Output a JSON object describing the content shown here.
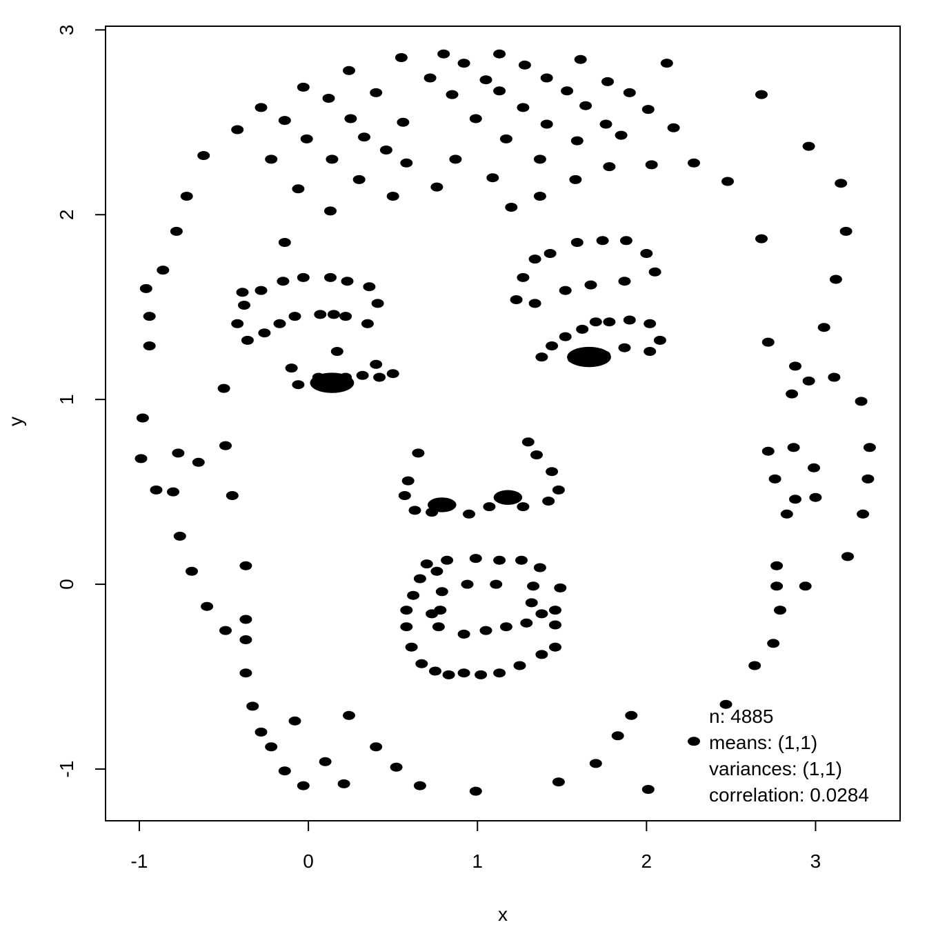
{
  "chart_data": {
    "type": "scatter",
    "xlabel": "x",
    "ylabel": "y",
    "xlim": [
      -1.2,
      3.5
    ],
    "ylim": [
      -1.28,
      3.02
    ],
    "xticks": [
      -1,
      0,
      1,
      2,
      3
    ],
    "yticks": [
      -1,
      0,
      1,
      2,
      3
    ],
    "grid": false,
    "point_color": "#000000",
    "annotations": {
      "n": "n: 4885",
      "means": "means: (1,1)",
      "variances": "variances: (1,1)",
      "correlation": "correlation: 0.0284"
    },
    "points": [
      [
        0.55,
        2.85
      ],
      [
        0.8,
        2.87
      ],
      [
        1.13,
        2.87
      ],
      [
        2.12,
        2.82
      ],
      [
        1.61,
        2.84
      ],
      [
        0.92,
        2.82
      ],
      [
        1.28,
        2.81
      ],
      [
        0.24,
        2.78
      ],
      [
        0.72,
        2.74
      ],
      [
        1.41,
        2.74
      ],
      [
        1.05,
        2.73
      ],
      [
        1.77,
        2.72
      ],
      [
        -0.03,
        2.69
      ],
      [
        0.4,
        2.66
      ],
      [
        1.13,
        2.67
      ],
      [
        1.53,
        2.67
      ],
      [
        0.85,
        2.65
      ],
      [
        1.9,
        2.66
      ],
      [
        2.68,
        2.65
      ],
      [
        0.12,
        2.63
      ],
      [
        1.27,
        2.58
      ],
      [
        1.64,
        2.59
      ],
      [
        -0.28,
        2.58
      ],
      [
        2.01,
        2.57
      ],
      [
        0.25,
        2.52
      ],
      [
        0.99,
        2.52
      ],
      [
        -0.14,
        2.51
      ],
      [
        0.56,
        2.5
      ],
      [
        1.41,
        2.49
      ],
      [
        1.76,
        2.49
      ],
      [
        -0.42,
        2.46
      ],
      [
        2.16,
        2.47
      ],
      [
        1.85,
        2.43
      ],
      [
        0.33,
        2.42
      ],
      [
        -0.01,
        2.41
      ],
      [
        1.17,
        2.41
      ],
      [
        1.59,
        2.4
      ],
      [
        2.96,
        2.37
      ],
      [
        0.46,
        2.35
      ],
      [
        -0.62,
        2.32
      ],
      [
        0.14,
        2.3
      ],
      [
        0.87,
        2.3
      ],
      [
        1.37,
        2.3
      ],
      [
        -0.22,
        2.3
      ],
      [
        0.58,
        2.28
      ],
      [
        2.28,
        2.28
      ],
      [
        1.78,
        2.26
      ],
      [
        2.03,
        2.27
      ],
      [
        2.48,
        2.18
      ],
      [
        3.15,
        2.17
      ],
      [
        0.3,
        2.19
      ],
      [
        1.58,
        2.19
      ],
      [
        1.09,
        2.2
      ],
      [
        0.76,
        2.15
      ],
      [
        -0.06,
        2.14
      ],
      [
        -0.72,
        2.1
      ],
      [
        0.5,
        2.1
      ],
      [
        1.37,
        2.1
      ],
      [
        1.2,
        2.04
      ],
      [
        0.13,
        2.02
      ],
      [
        -0.78,
        1.91
      ],
      [
        3.18,
        1.91
      ],
      [
        -0.14,
        1.85
      ],
      [
        2.68,
        1.87
      ],
      [
        1.59,
        1.85
      ],
      [
        1.74,
        1.86
      ],
      [
        1.88,
        1.86
      ],
      [
        1.43,
        1.79
      ],
      [
        2.0,
        1.79
      ],
      [
        1.34,
        1.76
      ],
      [
        -0.86,
        1.7
      ],
      [
        2.05,
        1.69
      ],
      [
        -0.03,
        1.66
      ],
      [
        0.13,
        1.66
      ],
      [
        1.27,
        1.66
      ],
      [
        0.23,
        1.64
      ],
      [
        -0.15,
        1.64
      ],
      [
        1.87,
        1.64
      ],
      [
        3.12,
        1.65
      ],
      [
        1.67,
        1.62
      ],
      [
        0.36,
        1.61
      ],
      [
        -0.96,
        1.6
      ],
      [
        -0.39,
        1.58
      ],
      [
        -0.28,
        1.59
      ],
      [
        1.52,
        1.59
      ],
      [
        1.23,
        1.54
      ],
      [
        0.41,
        1.52
      ],
      [
        1.34,
        1.52
      ],
      [
        -0.38,
        1.51
      ],
      [
        0.07,
        1.46
      ],
      [
        0.15,
        1.46
      ],
      [
        -0.08,
        1.45
      ],
      [
        0.22,
        1.45
      ],
      [
        -0.94,
        1.45
      ],
      [
        1.9,
        1.43
      ],
      [
        1.7,
        1.42
      ],
      [
        1.78,
        1.42
      ],
      [
        0.35,
        1.41
      ],
      [
        2.02,
        1.41
      ],
      [
        -0.42,
        1.41
      ],
      [
        -0.17,
        1.41
      ],
      [
        3.05,
        1.39
      ],
      [
        1.62,
        1.38
      ],
      [
        -0.26,
        1.36
      ],
      [
        1.52,
        1.34
      ],
      [
        2.08,
        1.32
      ],
      [
        -0.36,
        1.32
      ],
      [
        2.72,
        1.31
      ],
      [
        1.44,
        1.29
      ],
      [
        1.87,
        1.28
      ],
      [
        -0.94,
        1.29
      ],
      [
        0.17,
        1.26
      ],
      [
        2.02,
        1.26
      ],
      [
        1.38,
        1.23
      ],
      [
        1.57,
        1.22
      ],
      [
        1.62,
        1.22
      ],
      [
        1.7,
        1.23
      ],
      [
        1.75,
        1.24
      ],
      [
        0.4,
        1.19
      ],
      [
        2.88,
        1.18
      ],
      [
        -0.1,
        1.17
      ],
      [
        0.5,
        1.14
      ],
      [
        0.06,
        1.12
      ],
      [
        0.14,
        1.12
      ],
      [
        0.22,
        1.12
      ],
      [
        0.32,
        1.13
      ],
      [
        0.42,
        1.12
      ],
      [
        3.11,
        1.12
      ],
      [
        2.96,
        1.1
      ],
      [
        0.06,
        1.09
      ],
      [
        0.14,
        1.08
      ],
      [
        0.2,
        1.09
      ],
      [
        -0.06,
        1.08
      ],
      [
        -0.5,
        1.06
      ],
      [
        2.86,
        1.03
      ],
      [
        3.27,
        0.99
      ],
      [
        -0.98,
        0.9
      ],
      [
        1.3,
        0.77
      ],
      [
        -0.49,
        0.75
      ],
      [
        2.87,
        0.74
      ],
      [
        3.32,
        0.74
      ],
      [
        2.72,
        0.72
      ],
      [
        -0.77,
        0.71
      ],
      [
        0.65,
        0.71
      ],
      [
        1.35,
        0.7
      ],
      [
        -0.99,
        0.68
      ],
      [
        -0.65,
        0.66
      ],
      [
        2.99,
        0.63
      ],
      [
        1.44,
        0.61
      ],
      [
        0.59,
        0.56
      ],
      [
        2.76,
        0.57
      ],
      [
        3.31,
        0.57
      ],
      [
        -0.9,
        0.51
      ],
      [
        -0.8,
        0.5
      ],
      [
        1.48,
        0.51
      ],
      [
        -0.45,
        0.48
      ],
      [
        0.57,
        0.48
      ],
      [
        2.88,
        0.46
      ],
      [
        3.0,
        0.47
      ],
      [
        0.75,
        0.43
      ],
      [
        0.8,
        0.43
      ],
      [
        1.15,
        0.47
      ],
      [
        1.22,
        0.47
      ],
      [
        1.42,
        0.45
      ],
      [
        1.27,
        0.42
      ],
      [
        1.07,
        0.42
      ],
      [
        0.63,
        0.4
      ],
      [
        0.73,
        0.39
      ],
      [
        0.95,
        0.38
      ],
      [
        2.83,
        0.38
      ],
      [
        3.28,
        0.38
      ],
      [
        -0.76,
        0.26
      ],
      [
        3.19,
        0.15
      ],
      [
        0.99,
        0.14
      ],
      [
        0.82,
        0.13
      ],
      [
        1.13,
        0.13
      ],
      [
        1.26,
        0.13
      ],
      [
        0.7,
        0.11
      ],
      [
        -0.37,
        0.1
      ],
      [
        2.77,
        0.1
      ],
      [
        1.37,
        0.09
      ],
      [
        -0.69,
        0.07
      ],
      [
        0.76,
        0.07
      ],
      [
        0.66,
        0.03
      ],
      [
        0.94,
        0.0
      ],
      [
        1.11,
        0.0
      ],
      [
        1.33,
        -0.01
      ],
      [
        1.49,
        -0.02
      ],
      [
        2.77,
        -0.01
      ],
      [
        2.94,
        -0.01
      ],
      [
        0.79,
        -0.04
      ],
      [
        0.62,
        -0.06
      ],
      [
        1.32,
        -0.1
      ],
      [
        -0.6,
        -0.12
      ],
      [
        0.58,
        -0.14
      ],
      [
        0.78,
        -0.14
      ],
      [
        1.46,
        -0.14
      ],
      [
        2.79,
        -0.14
      ],
      [
        0.73,
        -0.16
      ],
      [
        1.38,
        -0.16
      ],
      [
        -0.37,
        -0.19
      ],
      [
        1.29,
        -0.21
      ],
      [
        1.46,
        -0.22
      ],
      [
        0.77,
        -0.23
      ],
      [
        1.17,
        -0.23
      ],
      [
        0.58,
        -0.23
      ],
      [
        1.05,
        -0.25
      ],
      [
        -0.49,
        -0.25
      ],
      [
        0.92,
        -0.27
      ],
      [
        -0.37,
        -0.3
      ],
      [
        2.75,
        -0.32
      ],
      [
        0.61,
        -0.34
      ],
      [
        1.46,
        -0.34
      ],
      [
        1.38,
        -0.38
      ],
      [
        0.67,
        -0.43
      ],
      [
        1.25,
        -0.44
      ],
      [
        2.64,
        -0.44
      ],
      [
        0.75,
        -0.47
      ],
      [
        1.13,
        -0.48
      ],
      [
        0.92,
        -0.48
      ],
      [
        1.02,
        -0.49
      ],
      [
        0.83,
        -0.49
      ],
      [
        -0.37,
        -0.48
      ],
      [
        2.47,
        -0.65
      ],
      [
        -0.33,
        -0.66
      ],
      [
        0.24,
        -0.71
      ],
      [
        1.91,
        -0.71
      ],
      [
        -0.08,
        -0.74
      ],
      [
        -0.28,
        -0.8
      ],
      [
        1.83,
        -0.82
      ],
      [
        2.28,
        -0.85
      ],
      [
        0.4,
        -0.88
      ],
      [
        -0.22,
        -0.88
      ],
      [
        1.7,
        -0.97
      ],
      [
        0.1,
        -0.96
      ],
      [
        0.52,
        -0.99
      ],
      [
        -0.14,
        -1.01
      ],
      [
        1.48,
        -1.07
      ],
      [
        0.21,
        -1.08
      ],
      [
        -0.03,
        -1.09
      ],
      [
        0.66,
        -1.09
      ],
      [
        2.01,
        -1.11
      ],
      [
        0.99,
        -1.12
      ]
    ],
    "blobs": [
      [
        0.14,
        1.09,
        0.13,
        0.055
      ],
      [
        1.66,
        1.23,
        0.13,
        0.055
      ],
      [
        0.79,
        0.43,
        0.085,
        0.04
      ],
      [
        1.18,
        0.47,
        0.085,
        0.04
      ]
    ]
  }
}
